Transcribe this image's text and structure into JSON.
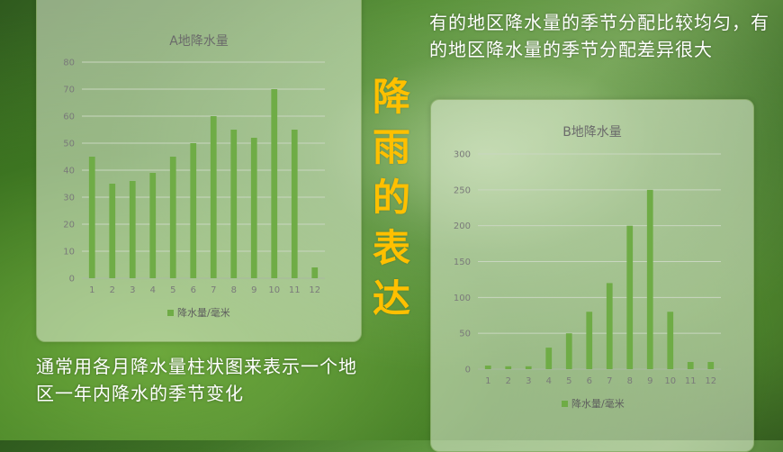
{
  "main_title": [
    "降",
    "雨",
    "的",
    "表",
    "达"
  ],
  "note_top": "有的地区降水量的季节分配比较均匀，有的地区降水量的季节分配差异很大",
  "note_bottom": "通常用各月降水量柱状图来表示一个地区一年内降水的季节变化",
  "colors": {
    "bar": "#6fac46",
    "title_accent": "#ffc000"
  },
  "chart_data": [
    {
      "type": "bar",
      "title": "A地降水量",
      "categories": [
        "1",
        "2",
        "3",
        "4",
        "5",
        "6",
        "7",
        "8",
        "9",
        "10",
        "11",
        "12"
      ],
      "series": [
        {
          "name": "降水量/毫米",
          "values": [
            45,
            35,
            36,
            39,
            45,
            50,
            60,
            55,
            52,
            70,
            55,
            4
          ]
        }
      ],
      "ylim": [
        0,
        80
      ],
      "yticks": [
        0,
        10,
        20,
        30,
        40,
        50,
        60,
        70,
        80
      ],
      "grid": true,
      "legend": "bottom"
    },
    {
      "type": "bar",
      "title": "B地降水量",
      "categories": [
        "1",
        "2",
        "3",
        "4",
        "5",
        "6",
        "7",
        "8",
        "9",
        "10",
        "11",
        "12"
      ],
      "series": [
        {
          "name": "降水量/毫米",
          "values": [
            5,
            4,
            4,
            30,
            50,
            80,
            120,
            200,
            250,
            80,
            10,
            10
          ]
        }
      ],
      "ylim": [
        0,
        300
      ],
      "yticks": [
        0,
        50,
        100,
        150,
        200,
        250,
        300
      ],
      "grid": true,
      "legend": "bottom"
    }
  ]
}
